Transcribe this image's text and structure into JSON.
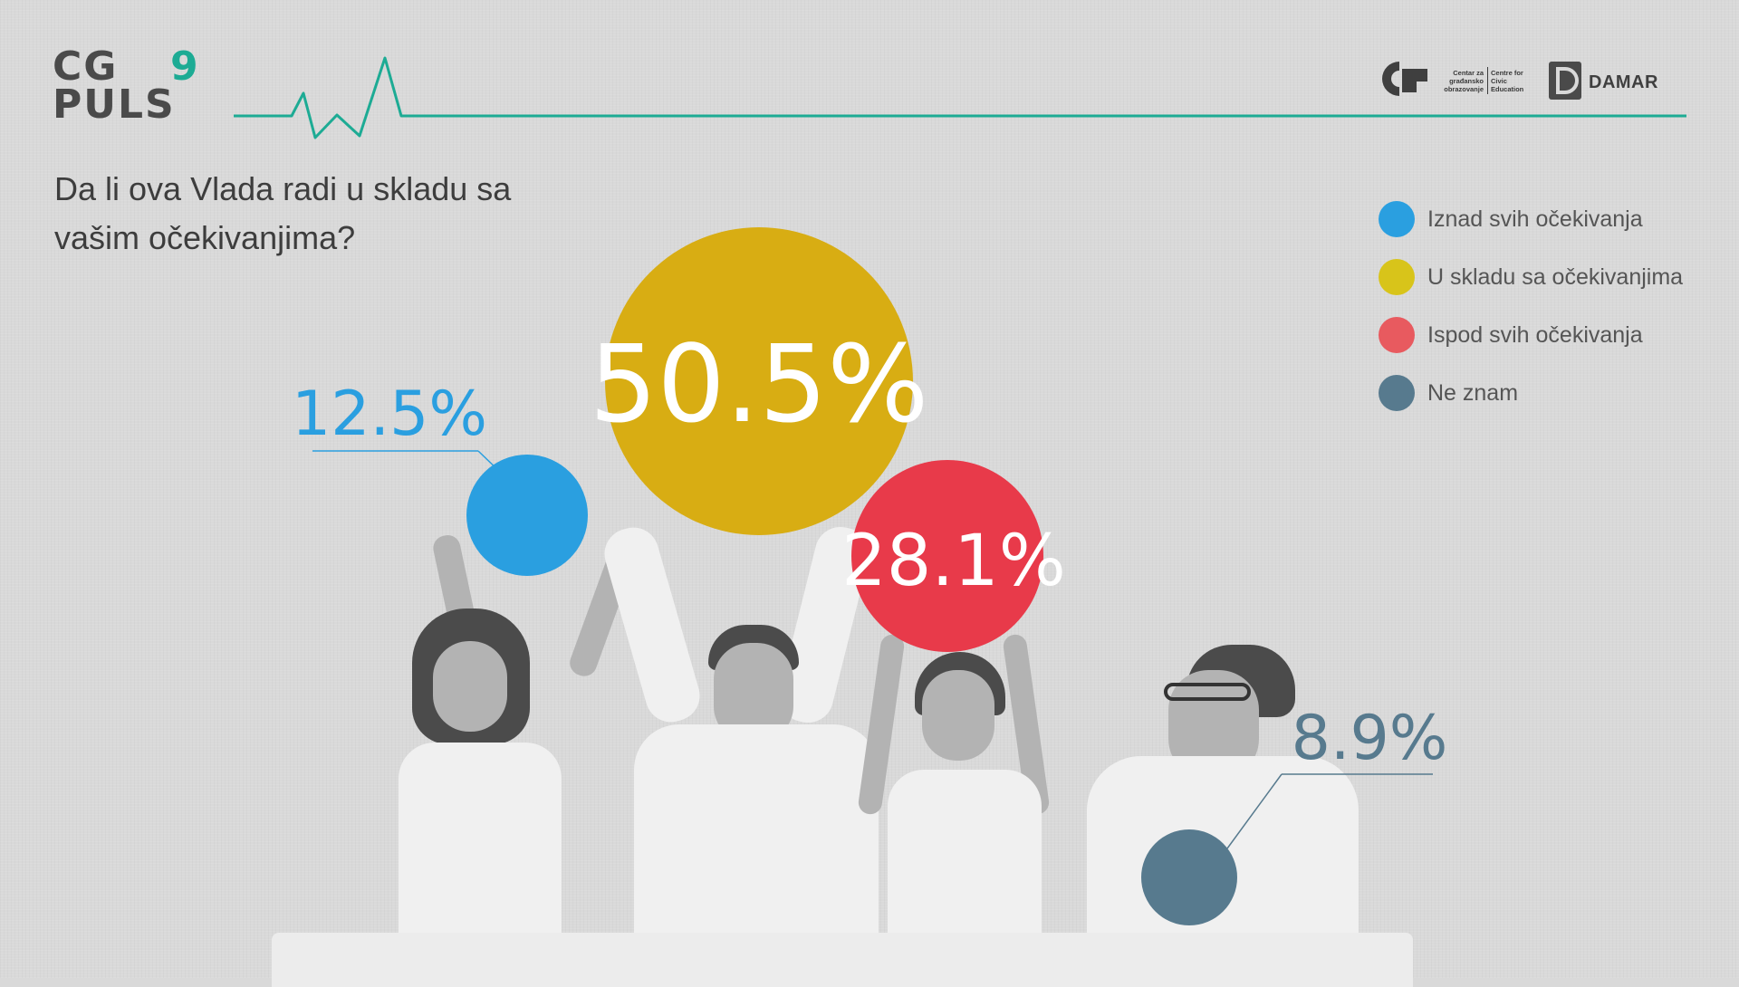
{
  "header": {
    "logo_line1": "CG",
    "logo_line2": "PULS",
    "logo_number": "9",
    "partner_cgo_sr": "Centar za građansko obrazovanje",
    "partner_cgo_en": "Centre for Civic Education",
    "partner_damar": "DAMAR"
  },
  "question": "Da li ova Vlada radi u skladu sa vašim očekivanjima?",
  "colors": {
    "accent": "#1dab94",
    "blue": "#2a9fe0",
    "yellow": "#d8ad13",
    "red": "#e83a4a",
    "slate": "#577a8e"
  },
  "chart_data": {
    "type": "pie",
    "title": "Da li ova Vlada radi u skladu sa vašim očekivanjima?",
    "unit": "%",
    "legend_position": "right",
    "series": [
      {
        "name": "Iznad svih očekivanja",
        "value": 12.5,
        "label": "12.5%",
        "color": "#2a9fe0"
      },
      {
        "name": "U skladu sa očekivanjima",
        "value": 50.5,
        "label": "50.5%",
        "color": "#d8ad13"
      },
      {
        "name": "Ispod svih očekivanja",
        "value": 28.1,
        "label": "28.1%",
        "color": "#e83a4a"
      },
      {
        "name": "Ne znam",
        "value": 8.9,
        "label": "8.9%",
        "color": "#577a8e"
      }
    ]
  }
}
